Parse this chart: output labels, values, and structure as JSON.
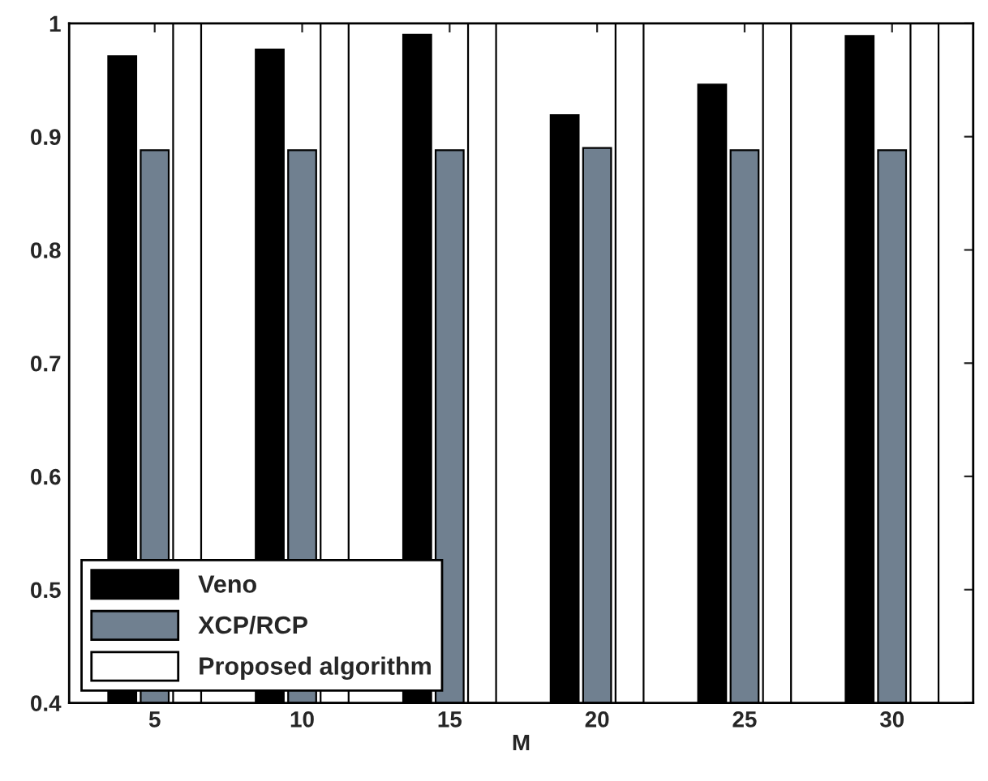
{
  "chart_data": {
    "type": "bar",
    "xlabel": "M",
    "categories": [
      "5",
      "10",
      "15",
      "20",
      "25",
      "30"
    ],
    "series": [
      {
        "name": "Veno",
        "color": "#000000",
        "values": [
          0.971,
          0.977,
          0.99,
          0.919,
          0.946,
          0.989
        ]
      },
      {
        "name": "XCP/RCP",
        "color": "#708090",
        "values": [
          0.888,
          0.888,
          0.888,
          0.89,
          0.888,
          0.888
        ]
      },
      {
        "name": "Proposed algorithm",
        "color": "#ffffff",
        "values": [
          1.0,
          1.0,
          1.0,
          1.0,
          1.0,
          1.0
        ]
      }
    ],
    "ylim": [
      0.4,
      1.0
    ],
    "yticks": [
      0.4,
      0.5,
      0.6,
      0.7,
      0.8,
      0.9,
      {
        "value": 1.0,
        "label": "1"
      }
    ],
    "grid": false,
    "legend": "lower left"
  }
}
